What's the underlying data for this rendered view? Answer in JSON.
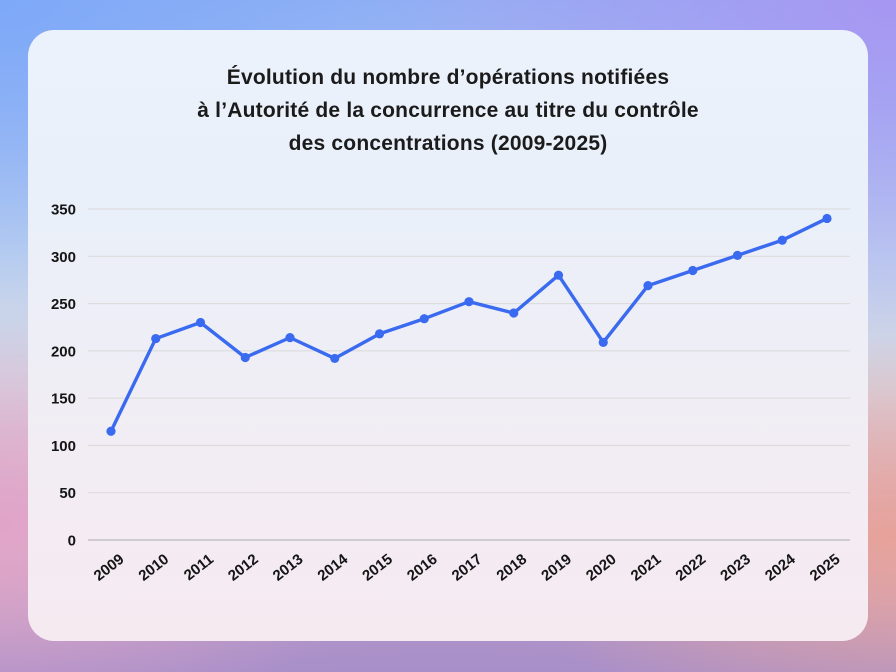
{
  "card": {
    "title": "Évolution du nombre d’opérations notifiées\nà l’Autorité de la concurrence au titre du contrôle\ndes concentrations (2009-2025)"
  },
  "colors": {
    "line": "#3a6af0",
    "marker": "#3a6af0",
    "grid": "#d9d9d9",
    "axis": "#c2c2c2",
    "tick_text": "#151515",
    "title_text": "#1b1b1b",
    "card_top": "#ecf2fb",
    "card_bottom": "#f6eaf1",
    "bg_top_left": "#7ea9f8",
    "bg_top_right": "#a797f2",
    "bg_bottom_left_pink": "#e0a4c9",
    "bg_bottom_right_salmon": "#e6a29a",
    "bg_bottom_purple": "#a88ec9"
  },
  "chart_data": {
    "type": "line",
    "title": "Évolution du nombre d’opérations notifiées\nà l’Autorité de la concurrence au titre du contrôle\ndes concentrations (2009-2025)",
    "categories": [
      "2009",
      "2010",
      "2011",
      "2012",
      "2013",
      "2014",
      "2015",
      "2016",
      "2017",
      "2018",
      "2019",
      "2020",
      "2021",
      "2022",
      "2023",
      "2024",
      "2025"
    ],
    "values": [
      115,
      213,
      230,
      193,
      214,
      192,
      218,
      234,
      252,
      240,
      280,
      209,
      269,
      285,
      301,
      317,
      340
    ],
    "xlabel": "",
    "ylabel": "",
    "ylim": [
      0,
      350
    ],
    "ytick_step": 50,
    "yticks": [
      0,
      50,
      100,
      150,
      200,
      250,
      300,
      350
    ],
    "grid": true,
    "legend": false,
    "marker": "circle",
    "x_label_rotation_deg": -38
  }
}
